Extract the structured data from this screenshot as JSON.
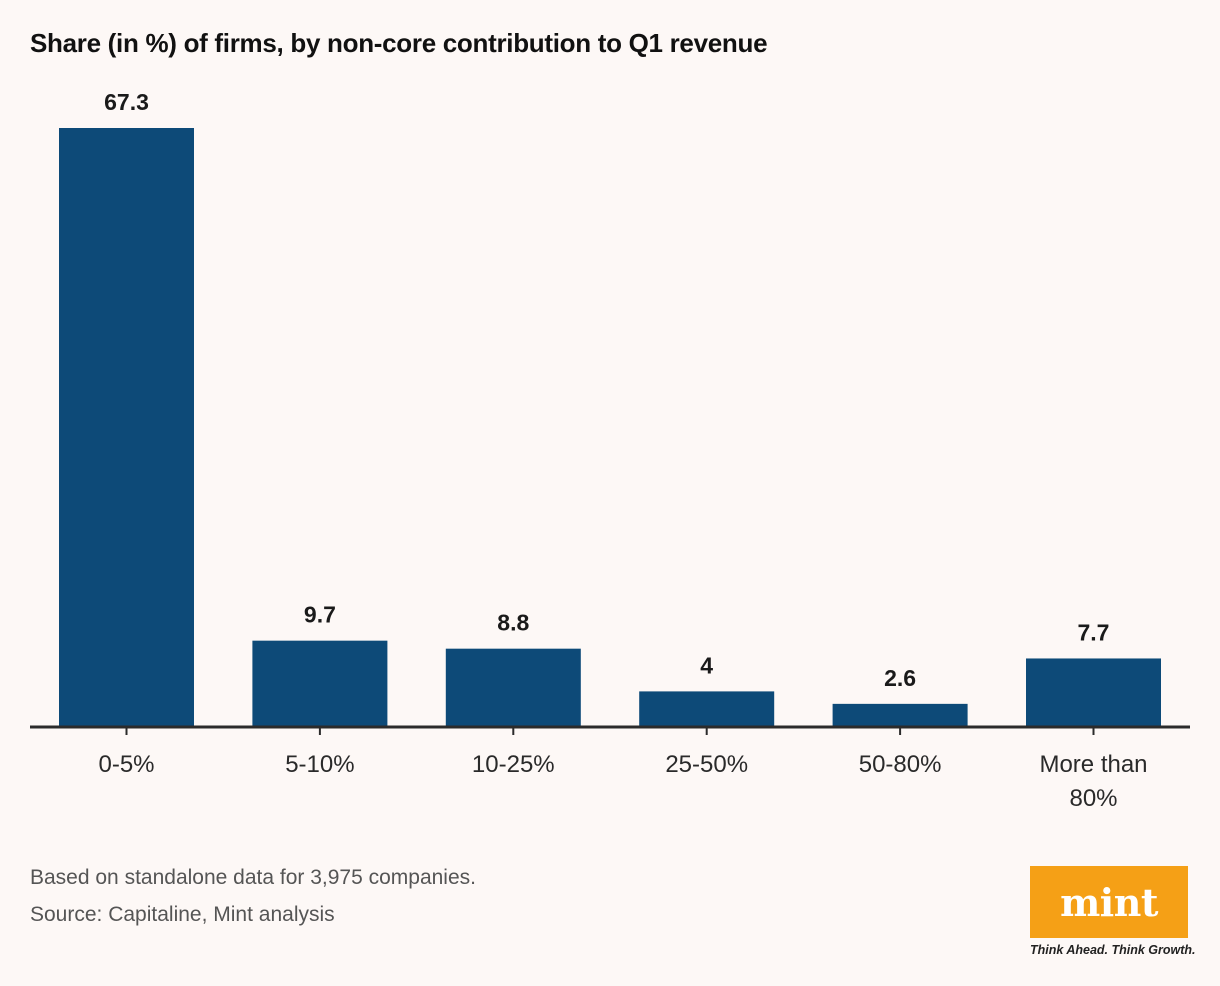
{
  "chart_data": {
    "type": "bar",
    "title": "Share (in %) of firms, by non-core contribution to Q1 revenue",
    "categories": [
      "0-5%",
      "5-10%",
      "10-25%",
      "25-50%",
      "50-80%",
      "More than 80%"
    ],
    "category_lines": [
      [
        "0-5%"
      ],
      [
        "5-10%"
      ],
      [
        "10-25%"
      ],
      [
        "25-50%"
      ],
      [
        "50-80%"
      ],
      [
        "More than",
        "80%"
      ]
    ],
    "values": [
      67.3,
      9.7,
      8.8,
      4,
      2.6,
      7.7
    ],
    "value_labels": [
      "67.3",
      "9.7",
      "8.8",
      "4",
      "2.6",
      "7.7"
    ],
    "xlabel": "",
    "ylabel": "",
    "ylim": [
      0,
      67.3
    ],
    "grid": false,
    "bar_color": "#0d4a78",
    "axis_color": "#2b2b2b"
  },
  "footnotes": {
    "note": "Based on standalone data for 3,975 companies.",
    "source": "Source: Capitaline, Mint analysis"
  },
  "brand": {
    "name": "mint",
    "tagline": "Think Ahead. Think Growth.",
    "color": "#f5a016"
  }
}
